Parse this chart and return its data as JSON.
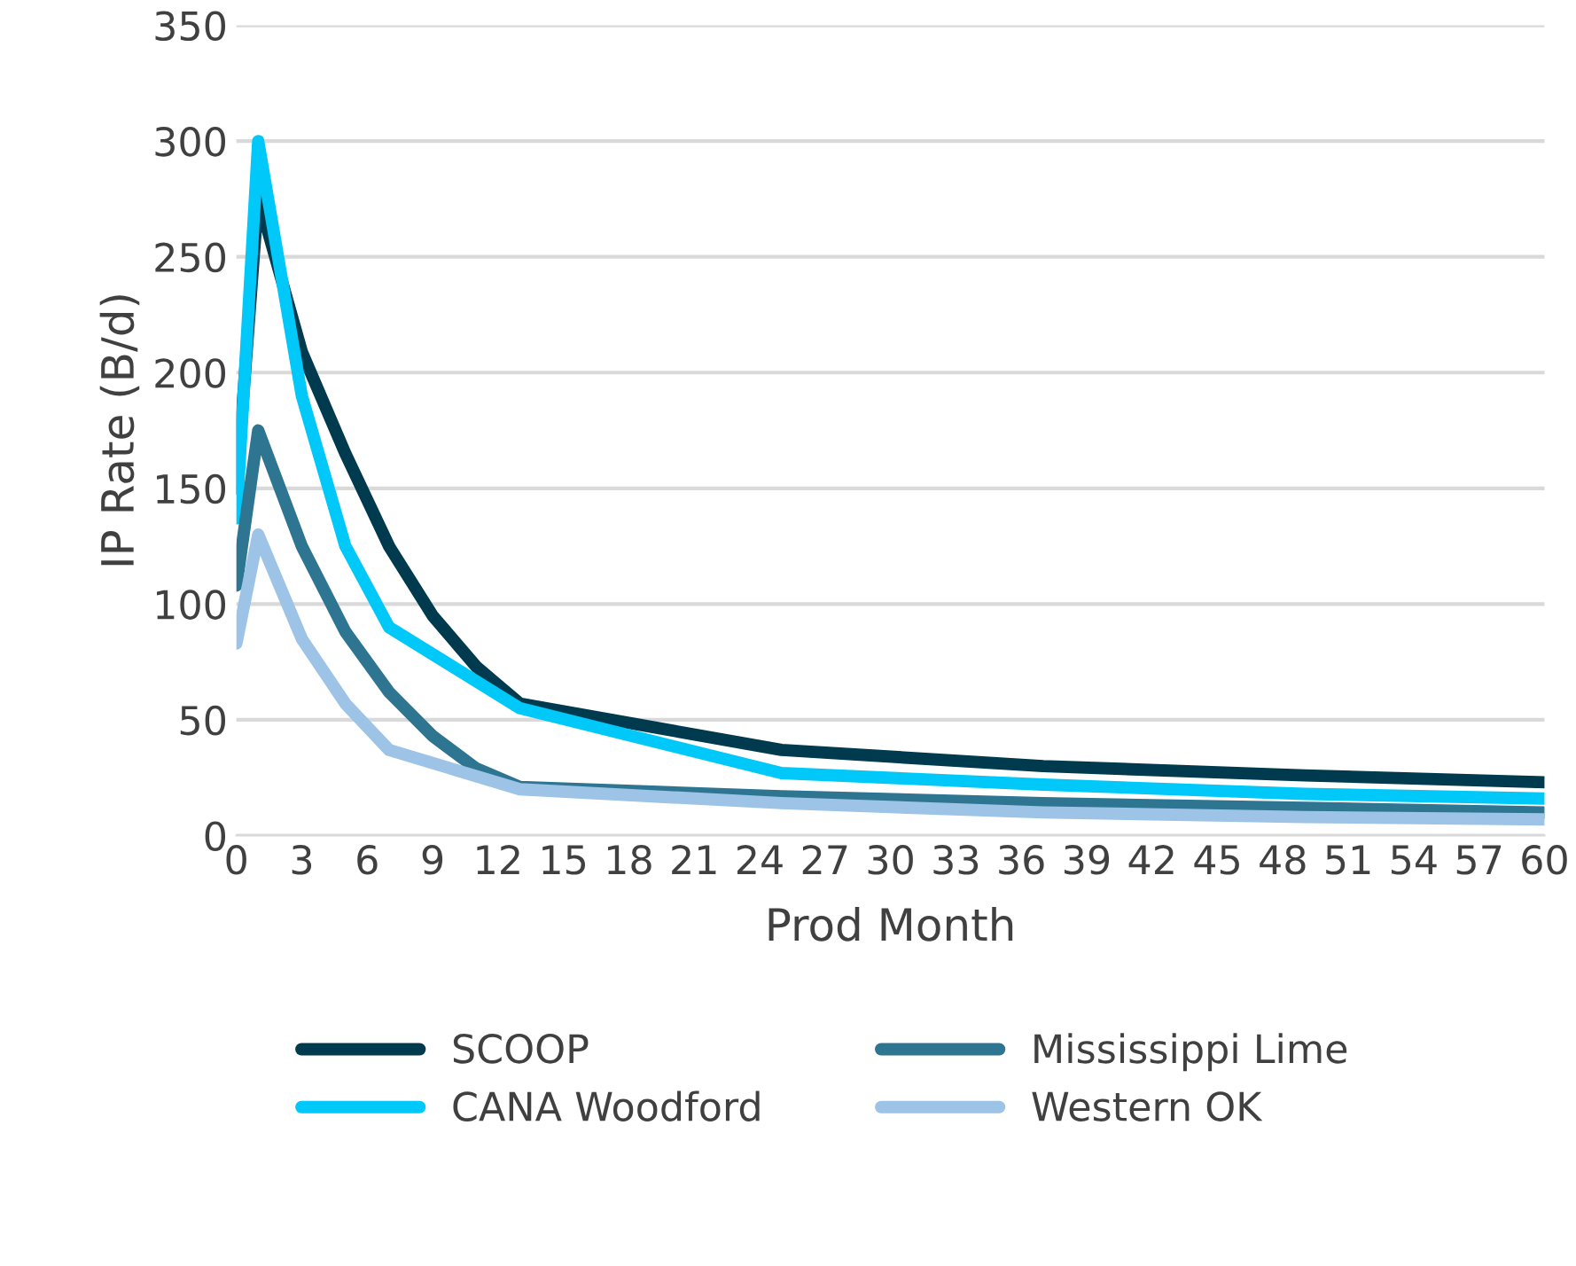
{
  "chart_data": {
    "type": "line",
    "xlabel": "Prod Month",
    "ylabel": "IP Rate (B/d)",
    "xlim": [
      0,
      60
    ],
    "xticks": [
      0,
      3,
      6,
      9,
      12,
      15,
      18,
      21,
      24,
      27,
      30,
      33,
      36,
      39,
      42,
      45,
      48,
      51,
      54,
      57,
      60
    ],
    "ylim": [
      0,
      350
    ],
    "yticks": [
      0,
      50,
      100,
      150,
      200,
      250,
      300,
      350
    ],
    "grid": "y",
    "legend": "bottom",
    "marker": "none",
    "line_style": "solid",
    "series": [
      {
        "name": "SCOOP",
        "color": "#003a4f",
        "x": [
          0,
          1,
          3,
          5,
          7,
          9,
          11,
          13,
          25,
          37,
          49,
          60
        ],
        "values": [
          150,
          276,
          209,
          165,
          125,
          95,
          73,
          57,
          37,
          30,
          26,
          23
        ]
      },
      {
        "name": "CANA Woodford",
        "color": "#00c8f8",
        "x": [
          0,
          1,
          3,
          5,
          7,
          13,
          25,
          37,
          49,
          60
        ],
        "values": [
          137,
          300,
          190,
          125,
          90,
          55,
          27,
          22,
          18,
          16
        ]
      },
      {
        "name": "Mississippi Lime",
        "color": "#2e7591",
        "x": [
          0,
          1,
          3,
          5,
          7,
          9,
          11,
          13,
          25,
          37,
          49,
          60
        ],
        "values": [
          108,
          175,
          125,
          88,
          62,
          43,
          29,
          21,
          17,
          14,
          12,
          10
        ]
      },
      {
        "name": "Western OK",
        "color": "#9dc3e6",
        "x": [
          0,
          1,
          3,
          5,
          7,
          13,
          25,
          37,
          49,
          60
        ],
        "values": [
          83,
          130,
          85,
          57,
          37,
          20,
          14,
          10,
          8,
          7
        ]
      }
    ]
  }
}
